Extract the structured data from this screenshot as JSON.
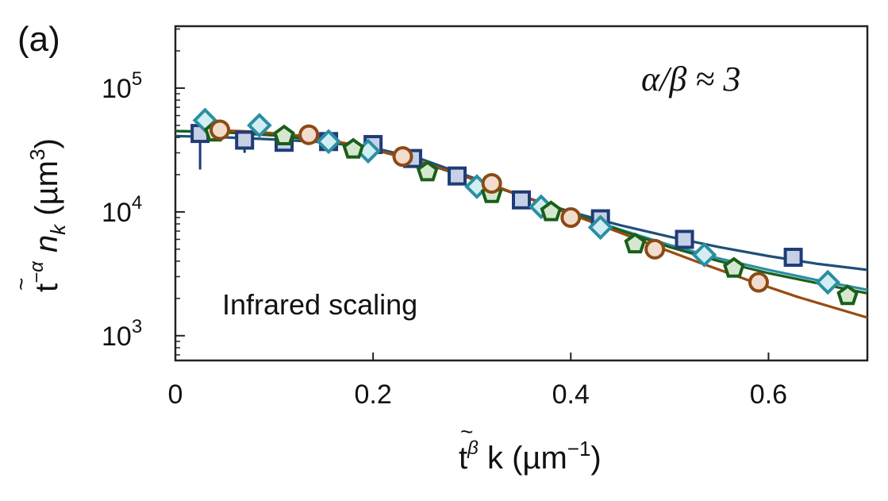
{
  "panel_label": "(a)",
  "chart_data": {
    "type": "scatter",
    "title": "",
    "xlabel": "t̃^β k (µm⁻¹)",
    "ylabel": "t̃^−α n_k (µm³)",
    "xlabel_parts": {
      "base": "t",
      "sup": "β",
      "rest": " k (µm",
      "unit_sup": "−1",
      "close": ")"
    },
    "ylabel_parts": {
      "base": "t",
      "sup": "−α",
      "n": " n",
      "sub": "k",
      "unit": " (µm",
      "unit_sup": "3",
      "close": ")"
    },
    "xlim": [
      0,
      0.7
    ],
    "ylim_log10": [
      2.8,
      5.5
    ],
    "x_ticks": [
      {
        "value": 0,
        "label": "0"
      },
      {
        "value": 0.2,
        "label": "0.2"
      },
      {
        "value": 0.4,
        "label": "0.4"
      },
      {
        "value": 0.6,
        "label": "0.6"
      }
    ],
    "y_ticks": [
      {
        "exp": 3,
        "base": "10",
        "sup": "3"
      },
      {
        "exp": 4,
        "base": "10",
        "sup": "4"
      },
      {
        "exp": 5,
        "base": "10",
        "sup": "5"
      }
    ],
    "annotation": "α/β ≈ 3",
    "text_label": "Infrared scaling",
    "series": [
      {
        "name": "squares",
        "marker": "square",
        "color": "#1f3c78",
        "fill": "#c7d1e6",
        "fit_color": "#1f4f7a",
        "x": [
          0.025,
          0.07,
          0.11,
          0.155,
          0.2,
          0.24,
          0.285,
          0.35,
          0.43,
          0.515,
          0.625
        ],
        "y": [
          43000,
          38000,
          36500,
          37000,
          35000,
          27000,
          19500,
          12500,
          8800,
          6000,
          4300
        ],
        "err_low": [
          22000,
          30000,
          null,
          null,
          null,
          null,
          null,
          null,
          null,
          null,
          null
        ],
        "err_high": [
          46000,
          40000,
          null,
          null,
          null,
          null,
          null,
          null,
          null,
          null,
          null
        ],
        "fit": [
          [
            0,
            41000
          ],
          [
            0.05,
            40000
          ],
          [
            0.1,
            38500
          ],
          [
            0.15,
            36500
          ],
          [
            0.2,
            33000
          ],
          [
            0.25,
            26500
          ],
          [
            0.3,
            19000
          ],
          [
            0.35,
            13500
          ],
          [
            0.4,
            10000
          ],
          [
            0.45,
            7800
          ],
          [
            0.5,
            6300
          ],
          [
            0.55,
            5200
          ],
          [
            0.6,
            4400
          ],
          [
            0.65,
            3800
          ],
          [
            0.7,
            3400
          ]
        ]
      },
      {
        "name": "diamonds",
        "marker": "diamond",
        "color": "#2a8fa3",
        "fill": "#d2eef2",
        "fit_color": "#2a8fa3",
        "x": [
          0.03,
          0.085,
          0.155,
          0.195,
          0.305,
          0.37,
          0.43,
          0.535,
          0.66
        ],
        "y": [
          55000,
          50000,
          37000,
          31000,
          16000,
          11000,
          7500,
          4500,
          2700
        ],
        "fit": [
          [
            0,
            45000
          ],
          [
            0.05,
            44000
          ],
          [
            0.1,
            41500
          ],
          [
            0.15,
            37500
          ],
          [
            0.2,
            32000
          ],
          [
            0.25,
            25000
          ],
          [
            0.3,
            18500
          ],
          [
            0.35,
            13500
          ],
          [
            0.4,
            9800
          ],
          [
            0.45,
            7200
          ],
          [
            0.5,
            5400
          ],
          [
            0.55,
            4200
          ],
          [
            0.6,
            3400
          ],
          [
            0.65,
            2800
          ],
          [
            0.7,
            2350
          ]
        ]
      },
      {
        "name": "pentagons",
        "marker": "pentagon",
        "color": "#1a5e1a",
        "fill": "#d5e8cf",
        "fit_color": "#1a5e1a",
        "x": [
          0.04,
          0.11,
          0.18,
          0.255,
          0.32,
          0.38,
          0.465,
          0.565,
          0.68
        ],
        "y": [
          44000,
          41000,
          32000,
          21000,
          14000,
          10000,
          5500,
          3500,
          2100
        ],
        "fit": [
          [
            0,
            45000
          ],
          [
            0.05,
            44000
          ],
          [
            0.1,
            41500
          ],
          [
            0.15,
            37500
          ],
          [
            0.2,
            32000
          ],
          [
            0.25,
            25000
          ],
          [
            0.3,
            18500
          ],
          [
            0.35,
            13500
          ],
          [
            0.4,
            9800
          ],
          [
            0.45,
            7100
          ],
          [
            0.5,
            5200
          ],
          [
            0.55,
            4000
          ],
          [
            0.6,
            3200
          ],
          [
            0.65,
            2650
          ],
          [
            0.7,
            2200
          ]
        ]
      },
      {
        "name": "circles",
        "marker": "circle",
        "color": "#8b4a14",
        "fill": "#f2dccd",
        "fit_color": "#9a4a12",
        "x": [
          0.045,
          0.135,
          0.23,
          0.32,
          0.4,
          0.485,
          0.59
        ],
        "y": [
          46000,
          42000,
          28000,
          17000,
          9000,
          5000,
          2700
        ],
        "fit": [
          [
            0.03,
            46000
          ],
          [
            0.08,
            44500
          ],
          [
            0.13,
            41000
          ],
          [
            0.18,
            35000
          ],
          [
            0.23,
            28000
          ],
          [
            0.28,
            21000
          ],
          [
            0.33,
            15500
          ],
          [
            0.38,
            11000
          ],
          [
            0.43,
            7800
          ],
          [
            0.48,
            5500
          ],
          [
            0.53,
            3900
          ],
          [
            0.58,
            2800
          ],
          [
            0.63,
            2050
          ],
          [
            0.7,
            1400
          ]
        ]
      }
    ]
  }
}
